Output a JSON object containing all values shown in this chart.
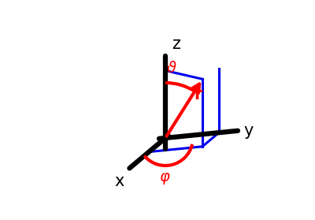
{
  "bg_color": "#ffffff",
  "axis_color": "#000000",
  "axis_lw": 4.5,
  "blue_color": "#0000ee",
  "blue_lw": 2.2,
  "red_color": "#ff0000",
  "red_lw": 3.0,
  "labels": {
    "x": {
      "text": "x",
      "fontsize": 15
    },
    "y": {
      "text": "y",
      "fontsize": 15
    },
    "z": {
      "text": "z",
      "fontsize": 15
    },
    "r": {
      "text": "r",
      "fontsize": 15
    },
    "theta": {
      "text": "ϑ",
      "fontsize": 14
    },
    "phi": {
      "text": "φ",
      "fontsize": 14
    }
  },
  "figsize": [
    4.0,
    2.79
  ],
  "dpi": 100
}
